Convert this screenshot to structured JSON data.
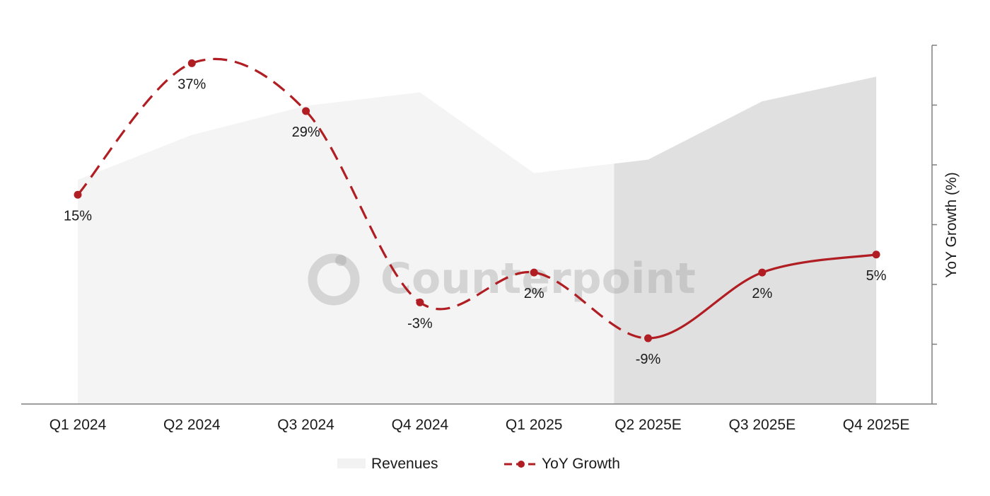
{
  "chart_data": {
    "type": "area+line",
    "categories": [
      "Q1 2024",
      "Q2 2024",
      "Q3 2024",
      "Q4 2024",
      "Q1 2025",
      "Q2 2025E",
      "Q3 2025E",
      "Q4 2025E"
    ],
    "forecast_from_index": 5,
    "series": [
      {
        "name": "Revenues",
        "type": "area",
        "values": [
          100,
          120,
          133,
          139,
          103,
          109,
          135,
          146
        ],
        "color": "#f4f4f4",
        "forecast_color": "#e0e0e0"
      },
      {
        "name": "YoY Growth",
        "type": "line",
        "axis": "right",
        "values": [
          15,
          37,
          29,
          -3,
          2,
          -9,
          2,
          5
        ],
        "data_labels": [
          "15%",
          "37%",
          "29%",
          "-3%",
          "2%",
          "-9%",
          "2%",
          "5%"
        ],
        "color": "#b01e23",
        "actual_style": "dashed",
        "forecast_style": "solid"
      }
    ],
    "y_left_range": [
      0,
      160
    ],
    "y_right_range": [
      -20,
      40
    ],
    "y_right_label": "YoY Growth (%)",
    "legend": {
      "position": "bottom",
      "items": [
        {
          "label": "Revenues",
          "swatch": "area"
        },
        {
          "label": "YoY Growth",
          "swatch": "dashed-line-marker"
        }
      ]
    },
    "watermark": "Counterpoint"
  }
}
